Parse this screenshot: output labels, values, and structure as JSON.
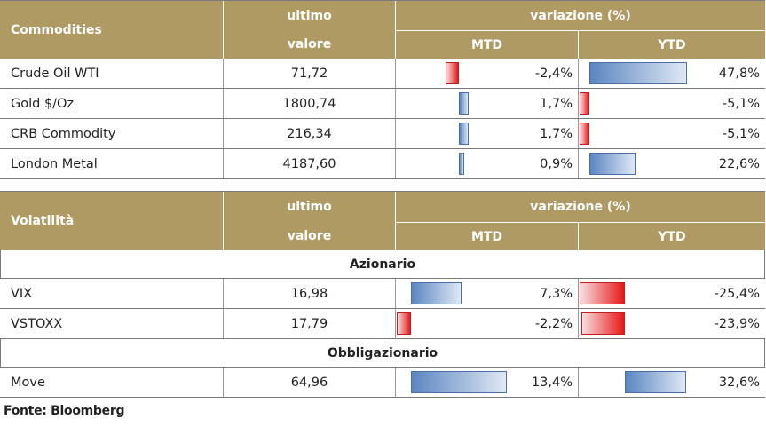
{
  "commodities": {
    "header": {
      "title": "Commodities",
      "ultimo": "ultimo",
      "valore": "valore",
      "variazione": "variazione (%)",
      "mtd": "MTD",
      "ytd": "YTD"
    },
    "rows": [
      {
        "name": "Crude Oil WTI",
        "value": "71,72",
        "mtd": "-2,4%",
        "ytd": "47,8%",
        "mtd_num": -2.4,
        "ytd_num": 47.8
      },
      {
        "name": "Gold $/Oz",
        "value": "1800,74",
        "mtd": "1,7%",
        "ytd": "-5,1%",
        "mtd_num": 1.7,
        "ytd_num": -5.1
      },
      {
        "name": "CRB Commodity",
        "value": "216,34",
        "mtd": "1,7%",
        "ytd": "-5,1%",
        "mtd_num": 1.7,
        "ytd_num": -5.1
      },
      {
        "name": "London Metal",
        "value": "4187,60",
        "mtd": "0,9%",
        "ytd": "22,6%",
        "mtd_num": 0.9,
        "ytd_num": 22.6
      }
    ]
  },
  "volatilita": {
    "header": {
      "title": "Volatilità",
      "ultimo": "ultimo",
      "valore": "valore",
      "variazione": "variazione (%)",
      "mtd": "MTD",
      "ytd": "YTD"
    },
    "section_azionario": "Azionario",
    "rows_azionario": [
      {
        "name": "VIX",
        "value": "16,98",
        "mtd": "7,3%",
        "ytd": "-25,4%",
        "mtd_num": 7.3,
        "ytd_num": -25.4
      },
      {
        "name": "VSTOXX",
        "value": "17,79",
        "mtd": "-2,2%",
        "ytd": "-23,9%",
        "mtd_num": -2.2,
        "ytd_num": -23.9
      }
    ],
    "section_obbligazionario": "Obbligazionario",
    "rows_obbligazionario": [
      {
        "name": "Move",
        "value": "64,96",
        "mtd": "13,4%",
        "ytd": "32,6%",
        "mtd_num": 13.4,
        "ytd_num": 32.6
      }
    ]
  },
  "footer": "Fonte: Bloomberg",
  "colors": {
    "header_bg": "#b09a63",
    "positive_bar": "#5b86c2",
    "negative_bar": "#e81818"
  }
}
